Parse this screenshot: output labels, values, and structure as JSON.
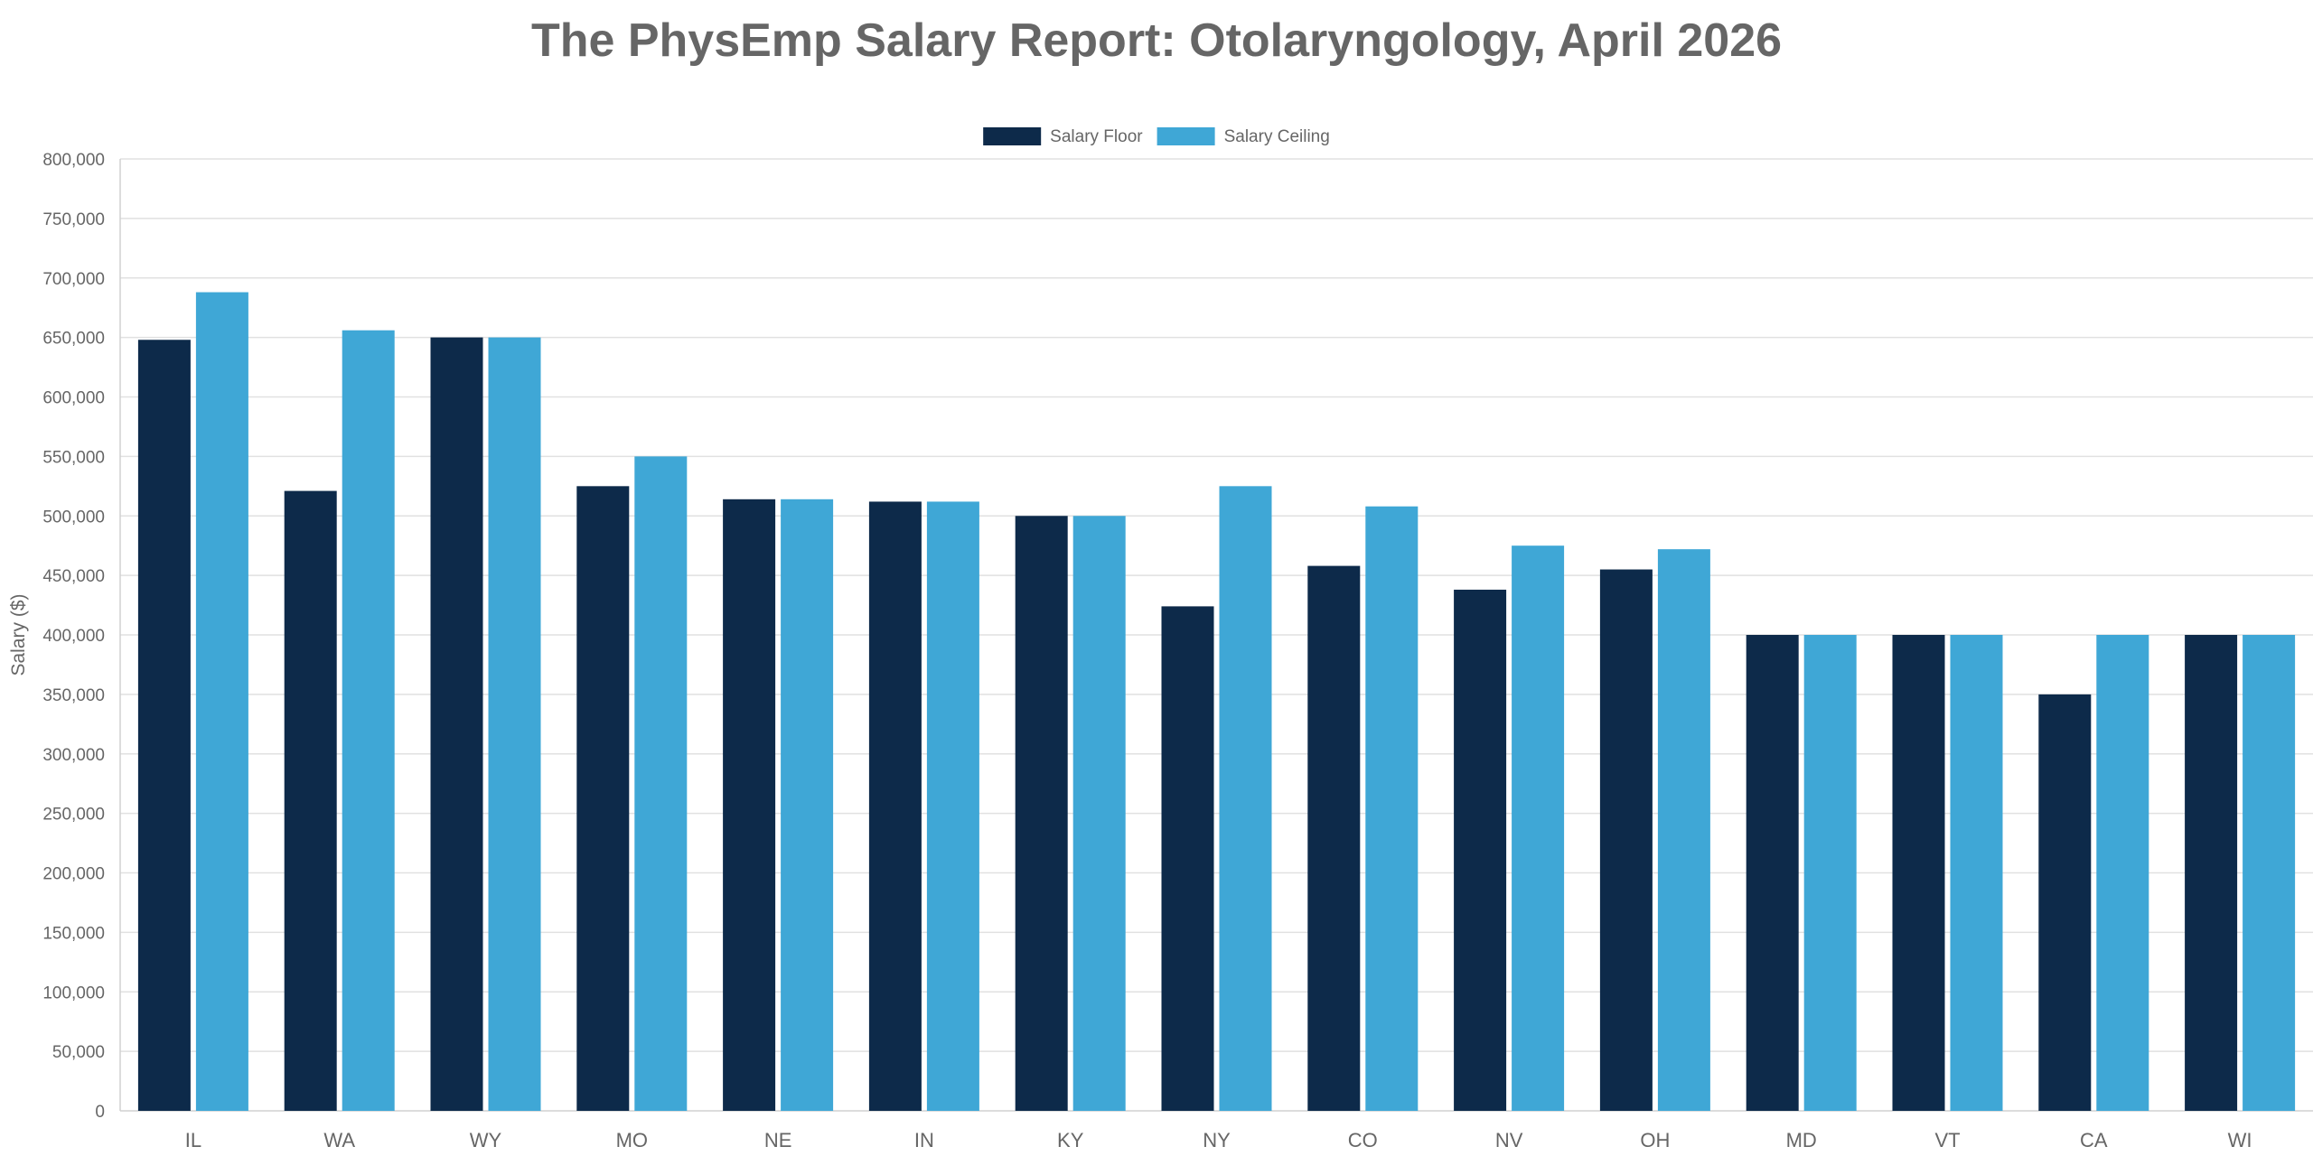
{
  "chart_data": {
    "type": "bar",
    "title": "The PhysEmp Salary Report: Otolaryngology, April 2026",
    "xlabel": "",
    "ylabel": "Salary ($)",
    "ylim": [
      0,
      800000
    ],
    "ytick_step": 50000,
    "grid": true,
    "legend_position": "top-center",
    "categories": [
      "IL",
      "WA",
      "WY",
      "MO",
      "NE",
      "IN",
      "KY",
      "NY",
      "CO",
      "NV",
      "OH",
      "MD",
      "VT",
      "CA",
      "WI"
    ],
    "series": [
      {
        "name": "Salary Floor",
        "color": "#0d2a4a",
        "values": [
          648000,
          521000,
          650000,
          525000,
          514000,
          512000,
          500000,
          424000,
          458000,
          438000,
          455000,
          400000,
          400000,
          350000,
          400000
        ]
      },
      {
        "name": "Salary Ceiling",
        "color": "#3fa7d6",
        "values": [
          688000,
          656000,
          650000,
          550000,
          514000,
          512000,
          500000,
          525000,
          508000,
          475000,
          472000,
          400000,
          400000,
          400000,
          400000
        ]
      }
    ]
  }
}
